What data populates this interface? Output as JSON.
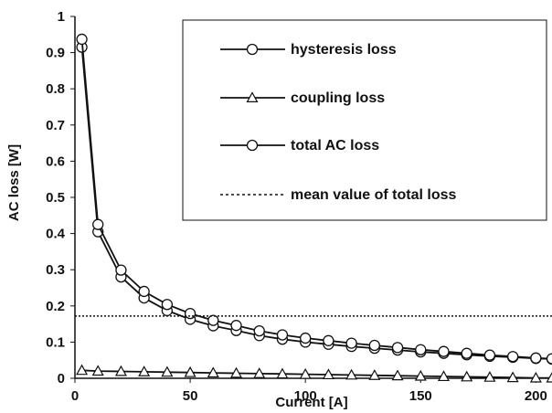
{
  "chart_data": {
    "type": "line",
    "xlabel": "Current [A]",
    "ylabel": "AC loss [W]",
    "xlim": [
      0,
      207
    ],
    "ylim": [
      0,
      1
    ],
    "x_ticks": [
      "0",
      "50",
      "100",
      "150",
      "200"
    ],
    "y_ticks": [
      "0",
      "0.1",
      "0.2",
      "0.3",
      "0.4",
      "0.5",
      "0.6",
      "0.7",
      "0.8",
      "0.9",
      "1"
    ],
    "grid": false,
    "legend_position": "top-right",
    "series": [
      {
        "name": "hysteresis loss",
        "marker": "circle",
        "x": [
          3,
          10,
          20,
          30,
          40,
          50,
          60,
          70,
          80,
          90,
          100,
          110,
          120,
          130,
          140,
          150,
          160,
          170,
          180,
          190,
          200,
          207
        ],
        "values": [
          0.915,
          0.405,
          0.28,
          0.222,
          0.187,
          0.163,
          0.145,
          0.132,
          0.118,
          0.108,
          0.1,
          0.094,
          0.088,
          0.083,
          0.078,
          0.073,
          0.069,
          0.065,
          0.061,
          0.058,
          0.055,
          0.053
        ]
      },
      {
        "name": "coupling loss",
        "marker": "triangle",
        "x": [
          3,
          10,
          20,
          30,
          40,
          50,
          60,
          70,
          80,
          90,
          100,
          110,
          120,
          130,
          140,
          150,
          160,
          170,
          180,
          190,
          200,
          207
        ],
        "values": [
          0.022,
          0.02,
          0.019,
          0.018,
          0.017,
          0.016,
          0.015,
          0.014,
          0.013,
          0.012,
          0.011,
          0.01,
          0.009,
          0.008,
          0.007,
          0.006,
          0.005,
          0.004,
          0.003,
          0.002,
          0.001,
          0.001
        ]
      },
      {
        "name": "total AC loss",
        "marker": "circle",
        "x": [
          3,
          10,
          20,
          30,
          40,
          50,
          60,
          70,
          80,
          90,
          100,
          110,
          120,
          130,
          140,
          150,
          160,
          170,
          180,
          190,
          200,
          207
        ],
        "values": [
          0.937,
          0.425,
          0.299,
          0.24,
          0.204,
          0.179,
          0.16,
          0.146,
          0.131,
          0.12,
          0.111,
          0.104,
          0.097,
          0.091,
          0.085,
          0.079,
          0.074,
          0.069,
          0.064,
          0.06,
          0.056,
          0.054
        ]
      },
      {
        "name": "mean value of total loss",
        "style": "dotted",
        "x": [
          0,
          207
        ],
        "values": [
          0.172,
          0.172
        ]
      }
    ]
  },
  "colors": {
    "line": "#111111",
    "marker_fill": "#ffffff",
    "background": "#ffffff"
  }
}
